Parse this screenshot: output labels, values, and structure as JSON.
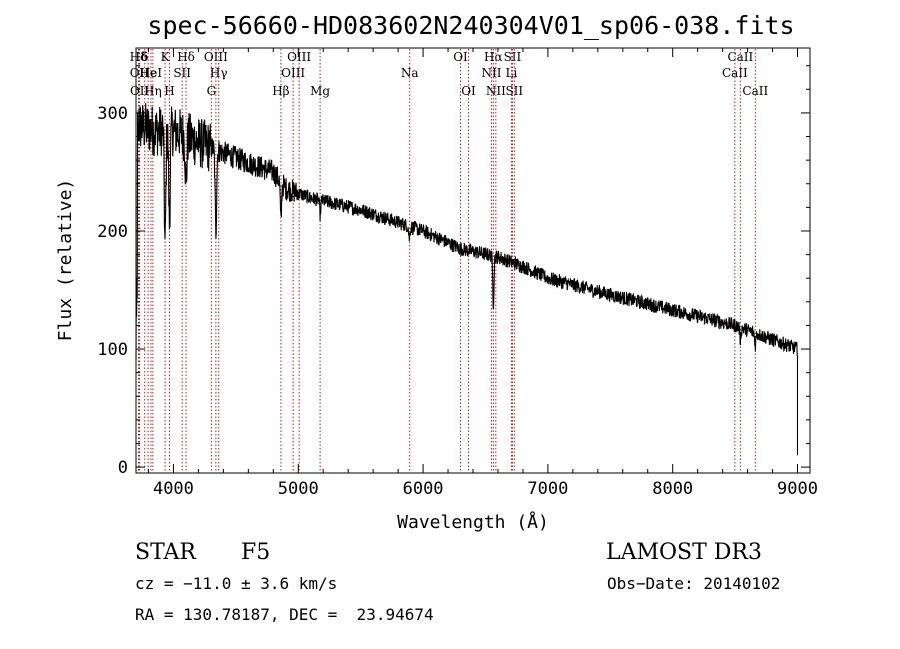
{
  "chart_data": {
    "type": "line",
    "title": "spec-56660-HD083602N240304V01_sp06-038.fits",
    "xlabel": "Wavelength (Å)",
    "ylabel": "Flux (relative)",
    "xlim": [
      3700,
      9100
    ],
    "ylim": [
      -5,
      355
    ],
    "xticks": [
      4000,
      5000,
      6000,
      7000,
      8000,
      9000
    ],
    "yticks": [
      0,
      100,
      200,
      300
    ],
    "line_color": "#000000",
    "marker_color": "#b22222",
    "continuum_anchors": [
      [
        3700,
        290
      ],
      [
        3850,
        285
      ],
      [
        4000,
        285
      ],
      [
        4200,
        275
      ],
      [
        4500,
        262
      ],
      [
        4800,
        250
      ],
      [
        4900,
        236
      ],
      [
        5100,
        228
      ],
      [
        5500,
        218
      ],
      [
        6000,
        200
      ],
      [
        6300,
        185
      ],
      [
        6600,
        178
      ],
      [
        6800,
        170
      ],
      [
        7000,
        160
      ],
      [
        7500,
        146
      ],
      [
        8000,
        133
      ],
      [
        8500,
        120
      ],
      [
        9000,
        100
      ]
    ],
    "absorption_dips": [
      [
        3933,
        100
      ],
      [
        3968,
        80
      ],
      [
        4101,
        40
      ],
      [
        4340,
        70
      ],
      [
        4861,
        35
      ],
      [
        5175,
        12
      ],
      [
        5890,
        10
      ],
      [
        6563,
        40
      ],
      [
        8542,
        10
      ],
      [
        8662,
        10
      ]
    ],
    "emission_lines": [
      {
        "label": "Hδ",
        "wave": 3720,
        "row": 0
      },
      {
        "label": "OII",
        "wave": 3727,
        "row": 1
      },
      {
        "label": "OII",
        "wave": 3729,
        "row": 2
      },
      {
        "label": "δ",
        "wave": 3770,
        "row": 0
      },
      {
        "label": "He",
        "wave": 3797,
        "row": 1
      },
      {
        "label": "HeI",
        "wave": 3820,
        "row": 1
      },
      {
        "label": "Hη",
        "wave": 3835,
        "row": 2
      },
      {
        "label": "K",
        "wave": 3933,
        "row": 0
      },
      {
        "label": "H",
        "wave": 3968,
        "row": 2
      },
      {
        "label": "SII",
        "wave": 4070,
        "row": 1
      },
      {
        "label": "Hδ",
        "wave": 4101,
        "row": 0
      },
      {
        "label": "G",
        "wave": 4304,
        "row": 2
      },
      {
        "label": "OIII",
        "wave": 4340,
        "row": 0
      },
      {
        "label": "Hγ",
        "wave": 4363,
        "row": 1
      },
      {
        "label": "Hβ",
        "wave": 4861,
        "row": 2
      },
      {
        "label": "OIII",
        "wave": 4959,
        "row": 1
      },
      {
        "label": "OIII",
        "wave": 5007,
        "row": 0
      },
      {
        "label": "Mg",
        "wave": 5175,
        "row": 2
      },
      {
        "label": "Na",
        "wave": 5893,
        "row": 1
      },
      {
        "label": "OI",
        "wave": 6300,
        "row": 0
      },
      {
        "label": "OI",
        "wave": 6364,
        "row": 2
      },
      {
        "label": "NII",
        "wave": 6548,
        "row": 1
      },
      {
        "label": "Hα",
        "wave": 6563,
        "row": 0
      },
      {
        "label": "NII",
        "wave": 6583,
        "row": 2
      },
      {
        "label": "SII",
        "wave": 6716,
        "row": 0
      },
      {
        "label": "Li",
        "wave": 6708,
        "row": 1
      },
      {
        "label": "SII",
        "wave": 6731,
        "row": 2
      },
      {
        "label": "CaII",
        "wave": 8498,
        "row": 1
      },
      {
        "label": "CaII",
        "wave": 8542,
        "row": 0
      },
      {
        "label": "CaII",
        "wave": 8662,
        "row": 2
      }
    ]
  },
  "info": {
    "object_class": "STAR",
    "subclass": "F5",
    "survey": "LAMOST DR3",
    "redshift": "cz = −11.0 ± 3.6 km/s",
    "obs_date": "Obs−Date: 20140102",
    "coords": "RA = 130.78187, DEC =  23.94674"
  }
}
